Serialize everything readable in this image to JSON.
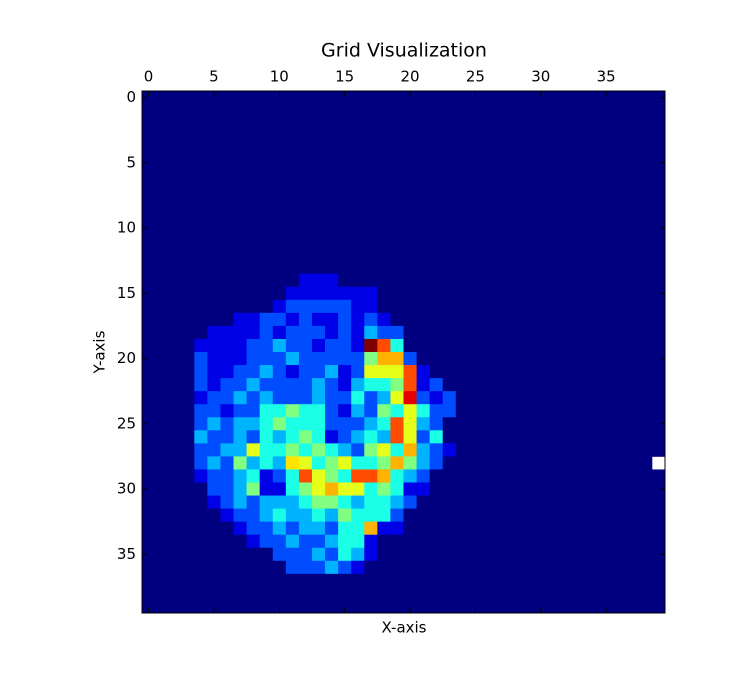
{
  "chart_data": {
    "type": "heatmap",
    "title": "Grid Visualization",
    "x_label": "X-axis",
    "y_label": "Y-axis",
    "xlim": [
      -0.5,
      39.5
    ],
    "ylim": [
      39.5,
      -0.5
    ],
    "xticks": [
      0,
      5,
      10,
      15,
      20,
      25,
      30,
      35
    ],
    "yticks": [
      0,
      5,
      10,
      15,
      20,
      25,
      30,
      35
    ],
    "colormap": "jet",
    "z": [
      [
        0,
        0,
        0,
        0,
        0,
        0,
        0,
        0,
        0,
        0,
        0,
        0,
        0,
        0,
        0,
        0,
        0,
        0,
        0,
        0,
        0,
        0,
        0,
        0,
        0,
        0,
        0,
        0,
        0,
        0,
        0,
        0,
        0,
        0,
        0,
        0,
        0,
        0,
        0,
        0
      ],
      [
        0,
        0,
        0,
        0,
        0,
        0,
        0,
        0,
        0,
        0,
        0,
        0,
        0,
        0,
        0,
        0,
        0,
        0,
        0,
        0,
        0,
        0,
        0,
        0,
        0,
        0,
        0,
        0,
        0,
        0,
        0,
        0,
        0,
        0,
        0,
        0,
        0,
        0,
        0,
        0
      ],
      [
        0,
        0,
        0,
        0,
        0,
        0,
        0,
        0,
        0,
        0,
        0,
        0,
        0,
        0,
        0,
        0,
        0,
        0,
        0,
        0,
        0,
        0,
        0,
        0,
        0,
        0,
        0,
        0,
        0,
        0,
        0,
        0,
        0,
        0,
        0,
        0,
        0,
        0,
        0,
        0
      ],
      [
        0,
        0,
        0,
        0,
        0,
        0,
        0,
        0,
        0,
        0,
        0,
        0,
        0,
        0,
        0,
        0,
        0,
        0,
        0,
        0,
        0,
        0,
        0,
        0,
        0,
        0,
        0,
        0,
        0,
        0,
        0,
        0,
        0,
        0,
        0,
        0,
        0,
        0,
        0,
        0
      ],
      [
        0,
        0,
        0,
        0,
        0,
        0,
        0,
        0,
        0,
        0,
        0,
        0,
        0,
        0,
        0,
        0,
        0,
        0,
        0,
        0,
        0,
        0,
        0,
        0,
        0,
        0,
        0,
        0,
        0,
        0,
        0,
        0,
        0,
        0,
        0,
        0,
        0,
        0,
        0,
        0
      ],
      [
        0,
        0,
        0,
        0,
        0,
        0,
        0,
        0,
        0,
        0,
        0,
        0,
        0,
        0,
        0,
        0,
        0,
        0,
        0,
        0,
        0,
        0,
        0,
        0,
        0,
        0,
        0,
        0,
        0,
        0,
        0,
        0,
        0,
        0,
        0,
        0,
        0,
        0,
        0,
        0
      ],
      [
        0,
        0,
        0,
        0,
        0,
        0,
        0,
        0,
        0,
        0,
        0,
        0,
        0,
        0,
        0,
        0,
        0,
        0,
        0,
        0,
        0,
        0,
        0,
        0,
        0,
        0,
        0,
        0,
        0,
        0,
        0,
        0,
        0,
        0,
        0,
        0,
        0,
        0,
        0,
        0
      ],
      [
        0,
        0,
        0,
        0,
        0,
        0,
        0,
        0,
        0,
        0,
        0,
        0,
        0,
        0,
        0,
        0,
        0,
        0,
        0,
        0,
        0,
        0,
        0,
        0,
        0,
        0,
        0,
        0,
        0,
        0,
        0,
        0,
        0,
        0,
        0,
        0,
        0,
        0,
        0,
        0
      ],
      [
        0,
        0,
        0,
        0,
        0,
        0,
        0,
        0,
        0,
        0,
        0,
        0,
        0,
        0,
        0,
        0,
        0,
        0,
        0,
        0,
        0,
        0,
        0,
        0,
        0,
        0,
        0,
        0,
        0,
        0,
        0,
        0,
        0,
        0,
        0,
        0,
        0,
        0,
        0,
        0
      ],
      [
        0,
        0,
        0,
        0,
        0,
        0,
        0,
        0,
        0,
        0,
        0,
        0,
        0,
        0,
        0,
        0,
        0,
        0,
        0,
        0,
        0,
        0,
        0,
        0,
        0,
        0,
        0,
        0,
        0,
        0,
        0,
        0,
        0,
        0,
        0,
        0,
        0,
        0,
        0,
        0
      ],
      [
        0,
        0,
        0,
        0,
        0,
        0,
        0,
        0,
        0,
        0,
        0,
        0,
        0,
        0,
        0,
        0,
        0,
        0,
        0,
        0,
        0,
        0,
        0,
        0,
        0,
        0,
        0,
        0,
        0,
        0,
        0,
        0,
        0,
        0,
        0,
        0,
        0,
        0,
        0,
        0
      ],
      [
        0,
        0,
        0,
        0,
        0,
        0,
        0,
        0,
        0,
        0,
        0,
        0,
        0,
        0,
        0,
        0,
        0,
        0,
        0,
        0,
        0,
        0,
        0,
        0,
        0,
        0,
        0,
        0,
        0,
        0,
        0,
        0,
        0,
        0,
        0,
        0,
        0,
        0,
        0,
        0
      ],
      [
        0,
        0,
        0,
        0,
        0,
        0,
        0,
        0,
        0,
        0,
        0,
        0,
        0,
        0,
        0,
        0,
        0,
        0,
        0,
        0,
        0,
        0,
        0,
        0,
        0,
        0,
        0,
        0,
        0,
        0,
        0,
        0,
        0,
        0,
        0,
        0,
        0,
        0,
        0,
        0
      ],
      [
        0,
        0,
        0,
        0,
        0,
        0,
        0,
        0,
        0,
        0,
        0,
        0,
        0,
        0,
        0,
        0,
        0,
        0,
        0,
        0,
        0,
        0,
        0,
        0,
        0,
        0,
        0,
        0,
        0,
        0,
        0,
        0,
        0,
        0,
        0,
        0,
        0,
        0,
        0,
        0
      ],
      [
        0,
        0,
        0,
        0,
        0,
        0,
        0,
        0,
        0,
        0,
        0,
        0,
        1,
        1,
        1,
        0,
        0,
        0,
        0,
        0,
        0,
        0,
        0,
        0,
        0,
        0,
        0,
        0,
        0,
        0,
        0,
        0,
        0,
        0,
        0,
        0,
        0,
        0,
        0,
        0
      ],
      [
        0,
        0,
        0,
        0,
        0,
        0,
        0,
        0,
        0,
        0,
        0,
        1,
        1,
        1,
        1,
        1,
        1,
        1,
        0,
        0,
        0,
        0,
        0,
        0,
        0,
        0,
        0,
        0,
        0,
        0,
        0,
        0,
        0,
        0,
        0,
        0,
        0,
        0,
        0,
        0
      ],
      [
        0,
        0,
        0,
        0,
        0,
        0,
        0,
        0,
        0,
        0,
        1,
        2,
        2,
        2,
        2,
        2,
        1,
        1,
        0,
        0,
        0,
        0,
        0,
        0,
        0,
        0,
        0,
        0,
        0,
        0,
        0,
        0,
        0,
        0,
        0,
        0,
        0,
        0,
        0,
        0
      ],
      [
        0,
        0,
        0,
        0,
        0,
        0,
        0,
        1,
        1,
        2,
        2,
        1,
        2,
        1,
        1,
        2,
        1,
        2,
        1,
        0,
        0,
        0,
        0,
        0,
        0,
        0,
        0,
        0,
        0,
        0,
        0,
        0,
        0,
        0,
        0,
        0,
        0,
        0,
        0,
        0
      ],
      [
        0,
        0,
        0,
        0,
        0,
        1,
        1,
        1,
        1,
        2,
        1,
        2,
        2,
        2,
        1,
        2,
        1,
        3,
        2,
        2,
        0,
        0,
        0,
        0,
        0,
        0,
        0,
        0,
        0,
        0,
        0,
        0,
        0,
        0,
        0,
        0,
        0,
        0,
        0,
        0
      ],
      [
        0,
        0,
        0,
        0,
        1,
        1,
        1,
        1,
        2,
        2,
        3,
        2,
        2,
        1,
        2,
        2,
        1,
        10,
        8,
        4,
        0,
        0,
        0,
        0,
        0,
        0,
        0,
        0,
        0,
        0,
        0,
        0,
        0,
        0,
        0,
        0,
        0,
        0,
        0,
        0
      ],
      [
        0,
        0,
        0,
        0,
        2,
        1,
        1,
        1,
        2,
        2,
        2,
        3,
        2,
        2,
        2,
        2,
        2,
        5,
        7,
        7,
        2,
        0,
        0,
        0,
        0,
        0,
        0,
        0,
        0,
        0,
        0,
        0,
        0,
        0,
        0,
        0,
        0,
        0,
        0,
        0
      ],
      [
        0,
        0,
        0,
        0,
        2,
        1,
        1,
        2,
        2,
        3,
        2,
        1,
        2,
        2,
        3,
        1,
        2,
        6,
        6,
        6,
        8,
        1,
        0,
        0,
        0,
        0,
        0,
        0,
        0,
        0,
        0,
        0,
        0,
        0,
        0,
        0,
        0,
        0,
        0,
        0
      ],
      [
        0,
        0,
        0,
        0,
        2,
        1,
        2,
        2,
        3,
        2,
        2,
        2,
        2,
        3,
        2,
        1,
        3,
        4,
        4,
        5,
        8,
        1,
        2,
        0,
        0,
        0,
        0,
        0,
        0,
        0,
        0,
        0,
        0,
        0,
        0,
        0,
        0,
        0,
        0,
        0
      ],
      [
        0,
        0,
        0,
        0,
        1,
        2,
        2,
        3,
        2,
        3,
        2,
        2,
        2,
        3,
        2,
        2,
        4,
        2,
        3,
        6,
        9,
        2,
        1,
        2,
        0,
        0,
        0,
        0,
        0,
        0,
        0,
        0,
        0,
        0,
        0,
        0,
        0,
        0,
        0,
        0
      ],
      [
        0,
        0,
        0,
        0,
        2,
        2,
        1,
        2,
        2,
        4,
        4,
        5,
        4,
        4,
        2,
        1,
        3,
        2,
        5,
        4,
        6,
        4,
        2,
        2,
        0,
        0,
        0,
        0,
        0,
        0,
        0,
        0,
        0,
        0,
        0,
        0,
        0,
        0,
        0,
        0
      ],
      [
        0,
        0,
        0,
        0,
        2,
        3,
        2,
        3,
        3,
        4,
        5,
        4,
        4,
        4,
        2,
        2,
        2,
        3,
        4,
        8,
        6,
        3,
        2,
        0,
        0,
        0,
        0,
        0,
        0,
        0,
        0,
        0,
        0,
        0,
        0,
        0,
        0,
        0,
        0,
        0
      ],
      [
        0,
        0,
        0,
        0,
        3,
        2,
        2,
        3,
        2,
        4,
        3,
        4,
        5,
        4,
        1,
        2,
        3,
        4,
        3,
        8,
        6,
        2,
        4,
        0,
        0,
        0,
        0,
        0,
        0,
        0,
        0,
        0,
        0,
        0,
        0,
        0,
        0,
        0,
        0,
        0
      ],
      [
        0,
        0,
        0,
        0,
        2,
        2,
        3,
        3,
        6,
        4,
        4,
        5,
        4,
        5,
        4,
        3,
        2,
        5,
        6,
        4,
        7,
        3,
        2,
        1,
        0,
        0,
        0,
        0,
        0,
        0,
        0,
        0,
        0,
        0,
        0,
        0,
        0,
        0,
        0,
        0
      ],
      [
        0,
        0,
        0,
        0,
        2,
        3,
        2,
        5,
        3,
        4,
        3,
        6.5,
        6,
        4,
        5,
        6,
        4,
        4,
        5,
        7,
        5,
        3,
        2,
        0,
        0,
        0,
        0,
        0,
        0,
        0,
        0,
        0,
        0,
        0,
        0,
        0,
        0,
        0,
        0
      ],
      [
        0,
        0,
        0,
        0,
        1,
        2,
        2,
        3,
        4,
        1,
        2,
        4,
        8,
        6,
        5,
        4,
        8,
        8,
        7,
        4,
        3,
        2,
        0,
        0,
        0,
        0,
        0,
        0,
        0,
        0,
        0,
        0,
        0,
        0,
        0,
        0,
        0,
        0,
        0,
        0
      ],
      [
        0,
        0,
        0,
        0,
        0,
        2,
        2,
        3,
        5,
        1,
        1,
        4,
        5,
        6,
        7,
        6,
        6,
        4,
        5,
        4,
        1,
        1,
        0,
        0,
        0,
        0,
        0,
        0,
        0,
        0,
        0,
        0,
        0,
        0,
        0,
        0,
        0,
        0,
        0,
        0
      ],
      [
        0,
        0,
        0,
        0,
        0,
        1,
        2,
        3,
        2,
        3,
        3,
        3,
        4,
        5,
        5,
        4,
        3,
        4,
        4,
        3,
        2,
        0,
        0,
        0,
        0,
        0,
        0,
        0,
        0,
        0,
        0,
        0,
        0,
        0,
        0,
        0,
        0,
        0,
        0,
        0
      ],
      [
        0,
        0,
        0,
        0,
        0,
        0,
        1,
        2,
        2,
        3,
        4,
        3,
        3,
        4,
        3,
        5,
        4,
        4,
        4,
        2,
        0,
        0,
        0,
        0,
        0,
        0,
        0,
        0,
        0,
        0,
        0,
        0,
        0,
        0,
        0,
        0,
        0,
        0,
        0,
        0
      ],
      [
        0,
        0,
        0,
        0,
        0,
        0,
        0,
        1,
        2,
        2,
        3,
        2,
        3,
        3,
        2,
        4,
        4,
        7,
        1,
        1,
        0,
        0,
        0,
        0,
        0,
        0,
        0,
        0,
        0,
        0,
        0,
        0,
        0,
        0,
        0,
        0,
        0,
        0,
        0,
        0
      ],
      [
        0,
        0,
        0,
        0,
        0,
        0,
        0,
        0,
        1,
        2,
        2,
        3,
        2,
        2,
        3,
        4,
        4,
        1,
        0,
        0,
        0,
        0,
        0,
        0,
        0,
        0,
        0,
        0,
        0,
        0,
        0,
        0,
        0,
        0,
        0,
        0,
        0,
        0,
        0,
        0
      ],
      [
        0,
        0,
        0,
        0,
        0,
        0,
        0,
        0,
        0,
        0,
        2,
        2,
        2,
        3,
        2,
        4,
        3,
        1,
        0,
        0,
        0,
        0,
        0,
        0,
        0,
        0,
        0,
        0,
        0,
        0,
        0,
        0,
        0,
        0,
        0,
        0,
        0,
        0,
        0,
        0
      ],
      [
        0,
        0,
        0,
        0,
        0,
        0,
        0,
        0,
        0,
        0,
        0,
        2,
        2,
        2,
        3,
        2,
        1,
        0,
        0,
        0,
        0,
        0,
        0,
        0,
        0,
        0,
        0,
        0,
        0,
        0,
        0,
        0,
        0,
        0,
        0,
        0,
        0,
        0,
        0,
        0
      ],
      [
        0,
        0,
        0,
        0,
        0,
        0,
        0,
        0,
        0,
        0,
        0,
        0,
        0,
        0,
        0,
        0,
        0,
        0,
        0,
        0,
        0,
        0,
        0,
        0,
        0,
        0,
        0,
        0,
        0,
        0,
        0,
        0,
        0,
        0,
        0,
        0,
        0,
        0,
        0,
        0
      ],
      [
        0,
        0,
        0,
        0,
        0,
        0,
        0,
        0,
        0,
        0,
        0,
        0,
        0,
        0,
        0,
        0,
        0,
        0,
        0,
        0,
        0,
        0,
        0,
        0,
        0,
        0,
        0,
        0,
        0,
        0,
        0,
        0,
        0,
        0,
        0,
        0,
        0,
        0,
        0,
        0
      ],
      [
        0,
        0,
        0,
        0,
        0,
        0,
        0,
        0,
        0,
        0,
        0,
        0,
        0,
        0,
        0,
        0,
        0,
        0,
        0,
        0,
        0,
        0,
        0,
        0,
        0,
        0,
        0,
        0,
        0,
        0,
        0,
        0,
        0,
        0,
        0,
        0,
        0,
        0,
        0,
        0
      ]
    ]
  }
}
